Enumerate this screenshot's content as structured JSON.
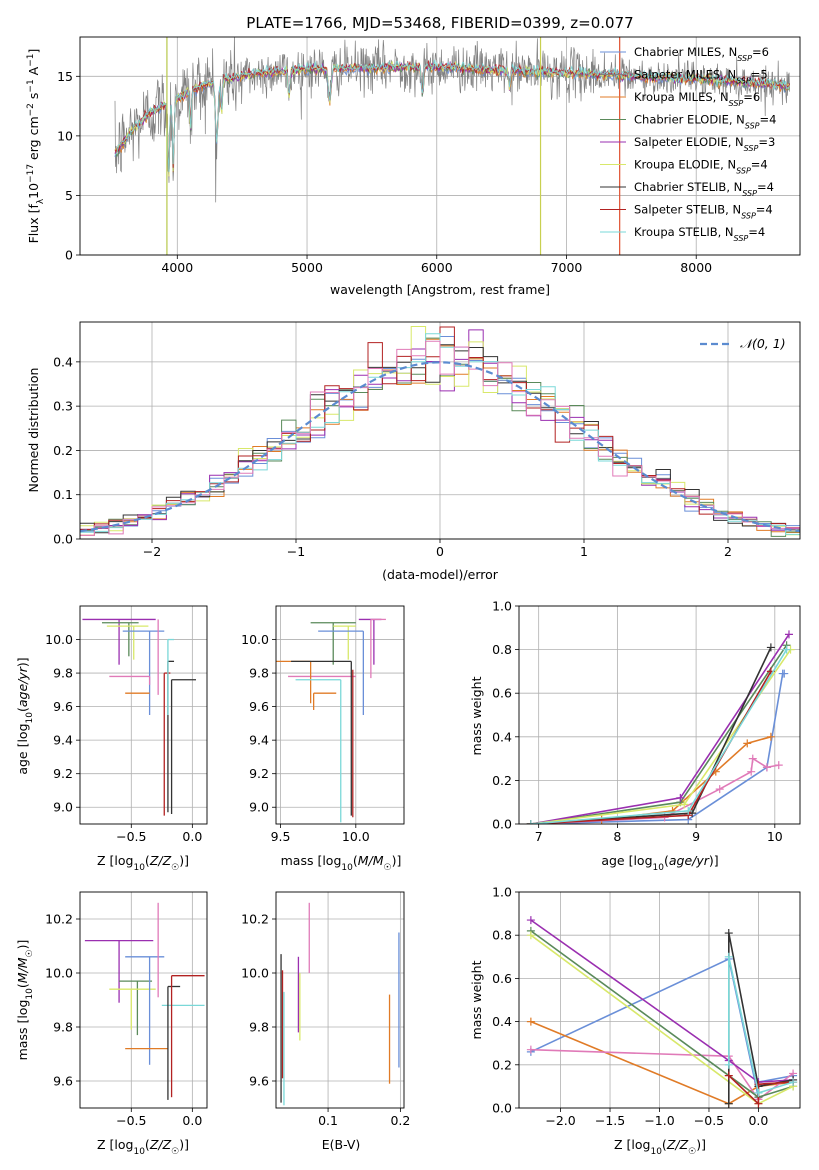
{
  "figure": {
    "title": "PLATE=1766, MJD=53468, FIBERID=0399, z=0.077"
  },
  "colors": {
    "Chabrier MILES": "#6a8fd8",
    "Salpeter MILES": "#808080",
    "Kroupa MILES": "#e07b27",
    "Chabrier ELODIE": "#5a8a5a",
    "Salpeter ELODIE": "#9a2fb0",
    "Kroupa ELODIE": "#d8e86a",
    "Chabrier STELIB": "#333333",
    "Salpeter STELIB": "#b22222",
    "Kroupa STELIB": "#7ad8d8",
    "pink": "#e07ab8",
    "lime": "#c8e040",
    "normal": "#5b8bd0"
  },
  "chart_data": [
    {
      "id": "spectrum",
      "type": "line",
      "title": "PLATE=1766, MJD=53468, FIBERID=0399, z=0.077",
      "xlabel": "wavelength [Angstrom, rest frame]",
      "ylabel": "Flux [f_λ 10^-17 erg cm^-2 s^-1 A^-1]",
      "xlim": [
        3250,
        8800
      ],
      "ylim": [
        0,
        18.3
      ],
      "xticks": [
        4000,
        5000,
        6000,
        7000,
        8000
      ],
      "yticks": [
        0,
        5,
        10,
        15
      ],
      "legend_position": "right",
      "legend": [
        {
          "label": "Chabrier MILES, N",
          "sub": "SSP",
          "tail": "=6",
          "color": "#6a8fd8"
        },
        {
          "label": "Salpeter MILES, N",
          "sub": "SSP",
          "tail": "=5",
          "color": "#808080"
        },
        {
          "label": "Kroupa MILES, N",
          "sub": "SSP",
          "tail": "=6",
          "color": "#e07b27"
        },
        {
          "label": "Chabrier ELODIE, N",
          "sub": "SSP",
          "tail": "=4",
          "color": "#5a8a5a"
        },
        {
          "label": "Salpeter ELODIE, N",
          "sub": "SSP",
          "tail": "=3",
          "color": "#9a2fb0"
        },
        {
          "label": "Kroupa ELODIE, N",
          "sub": "SSP",
          "tail": "=4",
          "color": "#d8e86a"
        },
        {
          "label": "Chabrier STELIB, N",
          "sub": "SSP",
          "tail": "=4",
          "color": "#333333"
        },
        {
          "label": "Salpeter STELIB, N",
          "sub": "SSP",
          "tail": "=4",
          "color": "#b22222"
        },
        {
          "label": "Kroupa STELIB, N",
          "sub": "SSP",
          "tail": "=4",
          "color": "#7ad8d8"
        }
      ],
      "continuum": [
        [
          3520,
          8.5
        ],
        [
          3650,
          10.5
        ],
        [
          3800,
          12.0
        ],
        [
          3950,
          12.8
        ],
        [
          4100,
          13.8
        ],
        [
          4300,
          14.6
        ],
        [
          4600,
          15.2
        ],
        [
          5000,
          15.6
        ],
        [
          5500,
          15.7
        ],
        [
          6000,
          15.8
        ],
        [
          6500,
          15.5
        ],
        [
          7000,
          15.3
        ],
        [
          7500,
          15.0
        ],
        [
          8000,
          14.8
        ],
        [
          8500,
          14.4
        ],
        [
          8720,
          14.2
        ]
      ],
      "vertical_lines": [
        {
          "x": 3920,
          "color": "#b8c84a"
        },
        {
          "x": 6800,
          "color": "#c8d050"
        },
        {
          "x": 7410,
          "color": "#e05030"
        }
      ]
    },
    {
      "id": "residuals",
      "type": "histogram",
      "xlabel": "(data-model)/error",
      "ylabel": "Normed distribution",
      "xlim": [
        -2.5,
        2.5
      ],
      "ylim": [
        0,
        0.49
      ],
      "xticks": [
        -2,
        -1,
        0,
        1,
        2
      ],
      "yticks": [
        0.0,
        0.1,
        0.2,
        0.3,
        0.4
      ],
      "legend": [
        {
          "label": "𝒩(0, 1)",
          "style": "dashed"
        }
      ],
      "bin_width": 0.1
    },
    {
      "id": "age_vs_Z",
      "type": "errorbar",
      "xlabel": "Z [log10(Z/Z☉)]",
      "ylabel": "age  [log10(age/yr)]",
      "xlim": [
        -0.92,
        0.12
      ],
      "ylim": [
        8.9,
        10.2
      ],
      "xticks": [
        -0.5,
        0.0
      ],
      "yticks": [
        9.0,
        9.2,
        9.4,
        9.6,
        9.8,
        10.0
      ],
      "points": [
        {
          "x": -0.6,
          "xerr": [
            0.3,
            0.3
          ],
          "y": 10.12,
          "yerr": [
            0.27,
            0.0
          ],
          "color": "#9a2fb0"
        },
        {
          "x": -0.52,
          "xerr": [
            0.22,
            0.08
          ],
          "y": 10.1,
          "yerr": [
            0.2,
            0.0
          ],
          "color": "#5a8a5a"
        },
        {
          "x": -0.48,
          "xerr": [
            0.22,
            0.12
          ],
          "y": 10.08,
          "yerr": [
            0.2,
            0.0
          ],
          "color": "#d8e86a"
        },
        {
          "x": -0.35,
          "xerr": [
            0.22,
            0.12
          ],
          "y": 10.05,
          "yerr": [
            0.5,
            0.0
          ],
          "color": "#6a8fd8"
        },
        {
          "x": -0.28,
          "xerr": [
            0.0,
            0.0
          ],
          "y": 10.12,
          "yerr": [
            0.45,
            0.0
          ],
          "color": "#e07ab8"
        },
        {
          "x": -0.35,
          "xerr": [
            0.33,
            0.0
          ],
          "y": 9.78,
          "yerr": [
            0.05,
            0.0
          ],
          "color": "#e07ab8"
        },
        {
          "x": -0.35,
          "xerr": [
            0.2,
            0.0
          ],
          "y": 9.68,
          "yerr": [
            0.0,
            0.0
          ],
          "color": "#e07b27"
        },
        {
          "x": -0.2,
          "xerr": [
            0.0,
            0.05
          ],
          "y": 9.87,
          "yerr": [
            0.9,
            0.0
          ],
          "color": "#333333"
        },
        {
          "x": -0.17,
          "xerr": [
            0.0,
            0.2
          ],
          "y": 9.76,
          "yerr": [
            0.8,
            0.0
          ],
          "color": "#333333"
        },
        {
          "x": -0.23,
          "xerr": [
            0.0,
            0.05
          ],
          "y": 9.8,
          "yerr": [
            0.85,
            0.0
          ],
          "color": "#b22222"
        },
        {
          "x": -0.2,
          "xerr": [
            0.0,
            0.05
          ],
          "y": 10.0,
          "yerr": [
            0.45,
            0.0
          ],
          "color": "#7ad8d8"
        }
      ]
    },
    {
      "id": "age_vs_mass",
      "type": "errorbar",
      "xlabel": "mass [log10(M/M☉)]",
      "ylabel": "",
      "xlim": [
        9.47,
        10.32
      ],
      "ylim": [
        8.9,
        10.2
      ],
      "xticks": [
        9.5,
        10.0
      ],
      "yticks": [
        9.0,
        9.2,
        9.4,
        9.6,
        9.8,
        10.0
      ],
      "points": [
        {
          "x": 10.12,
          "xerr": [
            0.1,
            0.05
          ],
          "y": 10.12,
          "yerr": [
            0.27,
            0.0
          ],
          "color": "#9a2fb0"
        },
        {
          "x": 9.85,
          "xerr": [
            0.15,
            0.15
          ],
          "y": 10.1,
          "yerr": [
            0.25,
            0.0
          ],
          "color": "#5a8a5a"
        },
        {
          "x": 9.95,
          "xerr": [
            0.1,
            0.05
          ],
          "y": 10.08,
          "yerr": [
            0.2,
            0.0
          ],
          "color": "#d8e86a"
        },
        {
          "x": 10.05,
          "xerr": [
            0.3,
            0.0
          ],
          "y": 10.05,
          "yerr": [
            0.5,
            0.0
          ],
          "color": "#6a8fd8"
        },
        {
          "x": 10.1,
          "xerr": [
            0.0,
            0.1
          ],
          "y": 10.12,
          "yerr": [
            0.35,
            0.0
          ],
          "color": "#e07ab8"
        },
        {
          "x": 10.0,
          "xerr": [
            0.45,
            0.0
          ],
          "y": 9.78,
          "yerr": [
            0.0,
            0.0
          ],
          "color": "#e07ab8"
        },
        {
          "x": 9.72,
          "xerr": [
            0.0,
            0.15
          ],
          "y": 9.68,
          "yerr": [
            0.1,
            0.0
          ],
          "color": "#e07b27"
        },
        {
          "x": 9.7,
          "xerr": [
            0.25,
            0.0
          ],
          "y": 9.87,
          "yerr": [
            0.25,
            0.0
          ],
          "color": "#e07b27"
        },
        {
          "x": 9.97,
          "xerr": [
            0.4,
            0.0
          ],
          "y": 9.87,
          "yerr": [
            0.92,
            0.0
          ],
          "color": "#333333"
        },
        {
          "x": 9.98,
          "xerr": [
            0.0,
            0.0
          ],
          "y": 9.82,
          "yerr": [
            0.88,
            0.0
          ],
          "color": "#b22222"
        },
        {
          "x": 9.9,
          "xerr": [
            0.3,
            0.0
          ],
          "y": 9.76,
          "yerr": [
            0.85,
            0.0
          ],
          "color": "#7ad8d8"
        }
      ]
    },
    {
      "id": "massweight_vs_age",
      "type": "line",
      "xlabel": "age  [log10(age/yr)]",
      "ylabel": "mass weight",
      "xlim": [
        6.75,
        10.32
      ],
      "ylim": [
        0,
        1.0
      ],
      "xticks": [
        7,
        8,
        9,
        10
      ],
      "yticks": [
        0.0,
        0.2,
        0.4,
        0.6,
        0.8,
        1.0
      ],
      "series": [
        {
          "color": "#6a8fd8",
          "x": [
            6.9,
            8.9,
            9.9,
            10.1,
            10.12
          ],
          "y": [
            0.0,
            0.02,
            0.26,
            0.69,
            0.69
          ]
        },
        {
          "color": "#e07b27",
          "x": [
            6.9,
            7.8,
            8.7,
            9.25,
            9.65,
            9.95
          ],
          "y": [
            0.0,
            0.02,
            0.06,
            0.24,
            0.37,
            0.4
          ]
        },
        {
          "color": "#e07ab8",
          "x": [
            6.9,
            8.6,
            9.3,
            9.7,
            9.72,
            9.9,
            10.05
          ],
          "y": [
            0.0,
            0.03,
            0.16,
            0.24,
            0.3,
            0.26,
            0.27
          ]
        },
        {
          "color": "#5a8a5a",
          "x": [
            6.9,
            8.8,
            10.15
          ],
          "y": [
            0.0,
            0.1,
            0.82
          ]
        },
        {
          "color": "#9a2fb0",
          "x": [
            6.9,
            8.8,
            10.18
          ],
          "y": [
            0.0,
            0.12,
            0.87
          ]
        },
        {
          "color": "#d8e86a",
          "x": [
            6.9,
            8.85,
            10.2
          ],
          "y": [
            0.0,
            0.09,
            0.8
          ]
        },
        {
          "color": "#333333",
          "x": [
            6.9,
            8.95,
            9.95
          ],
          "y": [
            0.0,
            0.05,
            0.81
          ]
        },
        {
          "color": "#b22222",
          "x": [
            6.9,
            8.9,
            9.95
          ],
          "y": [
            0.0,
            0.04,
            0.7
          ]
        },
        {
          "color": "#7ad8d8",
          "x": [
            6.9,
            8.9,
            10.15
          ],
          "y": [
            0.0,
            0.06,
            0.8
          ]
        }
      ]
    },
    {
      "id": "mass_vs_Z",
      "type": "errorbar",
      "xlabel": "Z [log10(Z/Z☉)]",
      "ylabel": "mass [log10(M/M☉)]",
      "xlim": [
        -0.92,
        0.12
      ],
      "ylim": [
        9.5,
        10.3
      ],
      "xticks": [
        -0.5,
        0.0
      ],
      "yticks": [
        9.6,
        9.8,
        10.0,
        10.2
      ],
      "points": [
        {
          "x": -0.6,
          "xerr": [
            0.28,
            0.28
          ],
          "y": 10.12,
          "yerr": [
            0.23,
            0.0
          ],
          "color": "#9a2fb0"
        },
        {
          "x": -0.45,
          "xerr": [
            0.15,
            0.12
          ],
          "y": 9.97,
          "yerr": [
            0.2,
            0.0
          ],
          "color": "#5a8a5a"
        },
        {
          "x": -0.5,
          "xerr": [
            0.18,
            0.2
          ],
          "y": 9.94,
          "yerr": [
            0.15,
            0.0
          ],
          "color": "#d8e86a"
        },
        {
          "x": -0.35,
          "xerr": [
            0.2,
            0.12
          ],
          "y": 10.06,
          "yerr": [
            0.4,
            0.0
          ],
          "color": "#6a8fd8"
        },
        {
          "x": -0.28,
          "xerr": [
            0.0,
            0.0
          ],
          "y": 10.26,
          "yerr": [
            0.35,
            0.0
          ],
          "color": "#e07ab8"
        },
        {
          "x": -0.3,
          "xerr": [
            0.25,
            0.1
          ],
          "y": 9.72,
          "yerr": [
            0.0,
            0.0
          ],
          "color": "#e07b27"
        },
        {
          "x": -0.1,
          "xerr": [
            0.15,
            0.2
          ],
          "y": 9.88,
          "yerr": [
            0.0,
            0.0
          ],
          "color": "#7ad8d8"
        },
        {
          "x": -0.2,
          "xerr": [
            0.0,
            0.1
          ],
          "y": 9.95,
          "yerr": [
            0.42,
            0.0
          ],
          "color": "#333333"
        },
        {
          "x": -0.17,
          "xerr": [
            0.0,
            0.27
          ],
          "y": 9.99,
          "yerr": [
            0.45,
            0.0
          ],
          "color": "#b22222"
        }
      ]
    },
    {
      "id": "mass_vs_ebv",
      "type": "errorbar",
      "xlabel": "E(B-V)",
      "ylabel": "",
      "xlim": [
        0.028,
        0.205
      ],
      "ylim": [
        9.5,
        10.3
      ],
      "xticks": [
        0.1,
        0.2
      ],
      "yticks": [
        9.6,
        9.8,
        10.0,
        10.2
      ],
      "points": [
        {
          "x": 0.035,
          "y": 10.07,
          "yerr": [
            0.55,
            0.0
          ],
          "color": "#333333"
        },
        {
          "x": 0.037,
          "y": 10.01,
          "yerr": [
            0.4,
            0.0
          ],
          "color": "#b22222"
        },
        {
          "x": 0.039,
          "y": 9.93,
          "yerr": [
            0.42,
            0.0
          ],
          "color": "#7ad8d8"
        },
        {
          "x": 0.059,
          "y": 10.06,
          "yerr": [
            0.28,
            0.0
          ],
          "color": "#9a2fb0"
        },
        {
          "x": 0.061,
          "y": 10.0,
          "yerr": [
            0.25,
            0.0
          ],
          "color": "#d8e86a"
        },
        {
          "x": 0.074,
          "y": 10.26,
          "yerr": [
            0.26,
            0.0
          ],
          "color": "#e07ab8"
        },
        {
          "x": 0.185,
          "y": 9.92,
          "yerr": [
            0.33,
            0.0
          ],
          "color": "#e07b27"
        },
        {
          "x": 0.198,
          "y": 10.15,
          "yerr": [
            0.5,
            0.0
          ],
          "color": "#6a8fd8"
        }
      ]
    },
    {
      "id": "massweight_vs_Z",
      "type": "line",
      "xlabel": "Z [log10(Z/Z☉)]",
      "ylabel": "mass weight",
      "xlim": [
        -2.42,
        0.42
      ],
      "ylim": [
        0,
        1.0
      ],
      "xticks": [
        -2.0,
        -1.5,
        -1.0,
        -0.5,
        0.0
      ],
      "yticks": [
        0.0,
        0.2,
        0.4,
        0.6,
        0.8,
        1.0
      ],
      "series": [
        {
          "color": "#6a8fd8",
          "x": [
            -2.3,
            -0.3,
            0.0,
            0.0,
            0.35
          ],
          "y": [
            0.26,
            0.69,
            0.05,
            0.12,
            0.15
          ]
        },
        {
          "color": "#e07b27",
          "x": [
            -2.3,
            -0.3,
            0.0,
            0.35
          ],
          "y": [
            0.4,
            0.02,
            0.1,
            0.12
          ]
        },
        {
          "color": "#e07ab8",
          "x": [
            -2.3,
            -0.3,
            0.0,
            0.35
          ],
          "y": [
            0.27,
            0.24,
            0.04,
            0.16
          ]
        },
        {
          "color": "#5a8a5a",
          "x": [
            -2.3,
            0.0,
            0.35
          ],
          "y": [
            0.82,
            0.05,
            0.1
          ]
        },
        {
          "color": "#9a2fb0",
          "x": [
            -2.3,
            -0.3,
            0.0,
            0.35
          ],
          "y": [
            0.87,
            0.22,
            0.12,
            0.13
          ]
        },
        {
          "color": "#d8e86a",
          "x": [
            -2.3,
            0.0,
            0.35
          ],
          "y": [
            0.8,
            0.02,
            0.1
          ]
        },
        {
          "color": "#333333",
          "x": [
            -0.3,
            -0.3,
            0.0,
            0.35
          ],
          "y": [
            0.02,
            0.81,
            0.1,
            0.13
          ]
        },
        {
          "color": "#b22222",
          "x": [
            -0.3,
            0.0,
            0.0,
            0.35
          ],
          "y": [
            0.15,
            0.02,
            0.11,
            0.12
          ]
        },
        {
          "color": "#7ad8d8",
          "x": [
            -0.3,
            -0.3,
            0.0,
            0.35
          ],
          "y": [
            0.2,
            0.7,
            0.07,
            0.12
          ]
        }
      ]
    }
  ]
}
